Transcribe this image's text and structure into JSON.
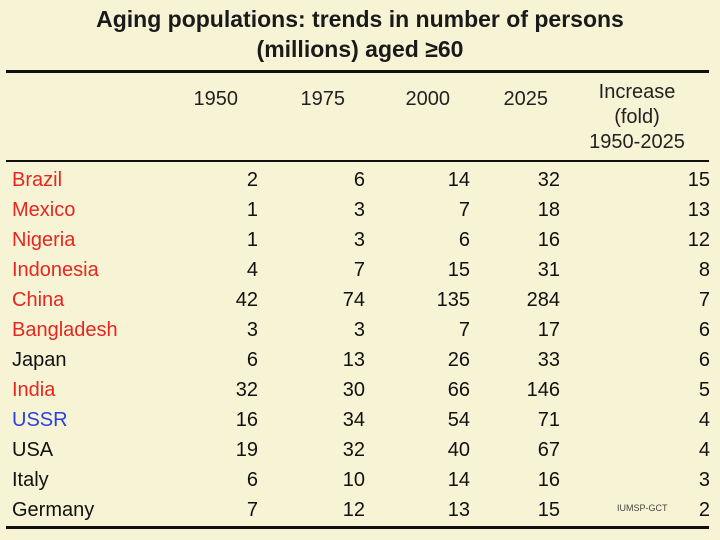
{
  "title_line1": "Aging populations: trends in number of persons",
  "title_line2": "(millions) aged ≥60",
  "columns": {
    "y1950": "1950",
    "y1975": "1975",
    "y2000": "2000",
    "y2025": "2025",
    "increase_l1": "Increase",
    "increase_l2": "(fold)",
    "increase_l3": "1950-2025"
  },
  "rows": [
    {
      "country": "Brazil",
      "color": "#e8251f",
      "y1950": "2",
      "y1975": "6",
      "y2000": "14",
      "y2025": "32",
      "increase": "15"
    },
    {
      "country": "Mexico",
      "color": "#e8251f",
      "y1950": "1",
      "y1975": "3",
      "y2000": "7",
      "y2025": "18",
      "increase": "13"
    },
    {
      "country": "Nigeria",
      "color": "#e8251f",
      "y1950": "1",
      "y1975": "3",
      "y2000": "6",
      "y2025": "16",
      "increase": "12"
    },
    {
      "country": "Indonesia",
      "color": "#e8251f",
      "y1950": "4",
      "y1975": "7",
      "y2000": "15",
      "y2025": "31",
      "increase": "8"
    },
    {
      "country": "China",
      "color": "#e8251f",
      "y1950": "42",
      "y1975": "74",
      "y2000": "135",
      "y2025": "284",
      "increase": "7"
    },
    {
      "country": "Bangladesh",
      "color": "#e8251f",
      "y1950": "3",
      "y1975": "3",
      "y2000": "7",
      "y2025": "17",
      "increase": "6"
    },
    {
      "country": "Japan",
      "color": "#111111",
      "y1950": "6",
      "y1975": "13",
      "y2000": "26",
      "y2025": "33",
      "increase": "6"
    },
    {
      "country": "India",
      "color": "#e8251f",
      "y1950": "32",
      "y1975": "30",
      "y2000": "66",
      "y2025": "146",
      "increase": "5"
    },
    {
      "country": "USSR",
      "color": "#2b3fe0",
      "y1950": "16",
      "y1975": "34",
      "y2000": "54",
      "y2025": "71",
      "increase": "4"
    },
    {
      "country": "USA",
      "color": "#111111",
      "y1950": "19",
      "y1975": "32",
      "y2000": "40",
      "y2025": "67",
      "increase": "4"
    },
    {
      "country": "Italy",
      "color": "#111111",
      "y1950": "6",
      "y1975": "10",
      "y2000": "14",
      "y2025": "16",
      "increase": "3"
    },
    {
      "country": "Germany",
      "color": "#111111",
      "y1950": "7",
      "y1975": "12",
      "y2000": "13",
      "y2025": "15",
      "increase": "2"
    }
  ],
  "credit": "IUMSP-GCT"
}
